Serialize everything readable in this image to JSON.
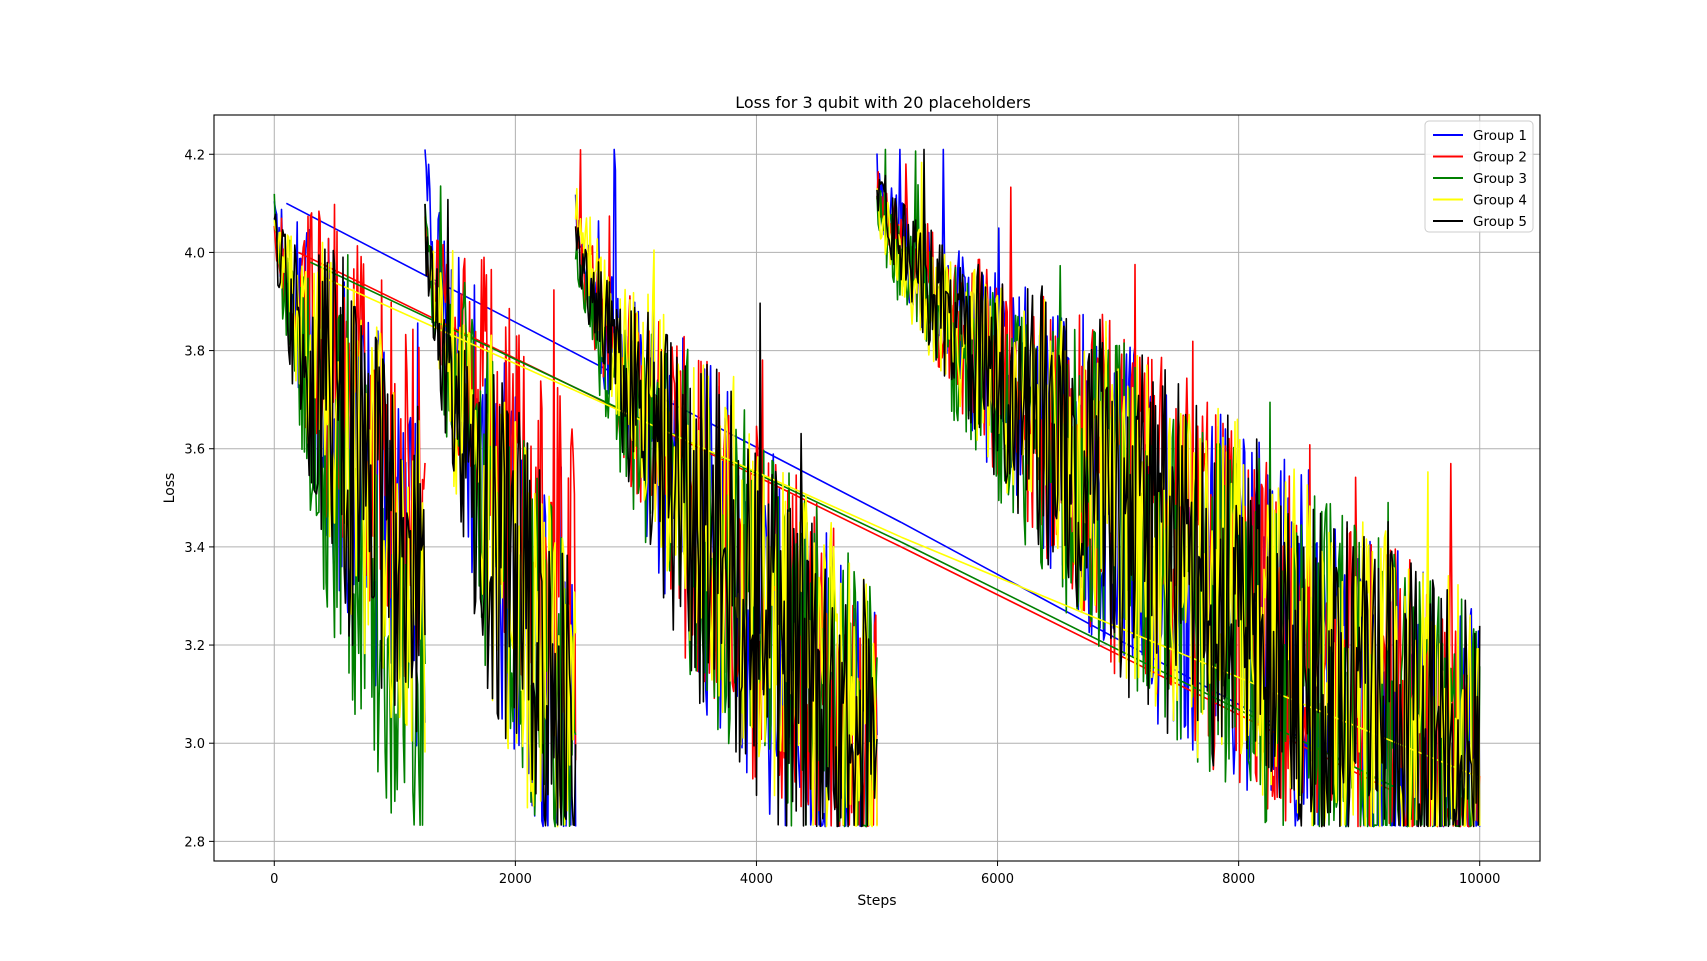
{
  "chart_data": {
    "type": "line",
    "title": "Loss for 3 qubit with 20 placeholders",
    "xlabel": "Steps",
    "ylabel": "Loss",
    "xlim": [
      -500,
      10500
    ],
    "ylim": [
      2.76,
      4.28
    ],
    "xticks": [
      0,
      2000,
      4000,
      6000,
      8000,
      10000
    ],
    "xtick_labels": [
      "0",
      "2000",
      "4000",
      "6000",
      "8000",
      "10000"
    ],
    "yticks": [
      2.8,
      3.0,
      3.2,
      3.4,
      3.6,
      3.8,
      4.0,
      4.2
    ],
    "ytick_labels": [
      "2.8",
      "3.0",
      "3.2",
      "3.4",
      "3.6",
      "3.8",
      "4.0",
      "4.2"
    ],
    "grid": true,
    "legend_position": "top-right",
    "floor": 2.83,
    "series": [
      {
        "name": "Group 1",
        "color": "#0000ff",
        "segments": [
          [
            0,
            1250,
            4.1,
            3.3
          ],
          [
            1250,
            2500,
            4.2,
            2.95
          ],
          [
            2500,
            5000,
            4.08,
            2.92
          ],
          [
            5000,
            10000,
            4.15,
            2.9
          ]
        ],
        "bridges": [
          [
            100,
            4.1,
            5200,
            3.45
          ],
          [
            5200,
            3.45,
            9200,
            2.92
          ]
        ]
      },
      {
        "name": "Group 2",
        "color": "#ff0000",
        "segments": [
          [
            0,
            1250,
            4.06,
            3.45
          ],
          [
            1250,
            2500,
            4.05,
            3.3
          ],
          [
            2500,
            5000,
            4.06,
            2.95
          ],
          [
            5000,
            10000,
            4.16,
            2.9
          ]
        ],
        "bridges": [
          [
            200,
            4.0,
            5200,
            3.4
          ],
          [
            5200,
            3.4,
            9300,
            2.9
          ]
        ]
      },
      {
        "name": "Group 3",
        "color": "#008000",
        "segments": [
          [
            0,
            1250,
            4.1,
            3.05
          ],
          [
            1250,
            2500,
            4.05,
            3.0
          ],
          [
            2500,
            5000,
            4.0,
            2.95
          ],
          [
            5000,
            10000,
            4.1,
            2.9
          ]
        ],
        "bridges": [
          [
            300,
            3.98,
            5200,
            3.41
          ],
          [
            5200,
            3.41,
            9300,
            2.91
          ]
        ]
      },
      {
        "name": "Group 4",
        "color": "#ffff00",
        "segments": [
          [
            0,
            1250,
            4.1,
            3.3
          ],
          [
            1250,
            2500,
            4.05,
            3.0
          ],
          [
            2500,
            5000,
            4.12,
            2.95
          ],
          [
            5000,
            10000,
            4.12,
            2.92
          ]
        ],
        "bridges": [
          [
            400,
            3.95,
            5200,
            3.42
          ],
          [
            5200,
            3.42,
            10000,
            2.93
          ]
        ]
      },
      {
        "name": "Group 5",
        "color": "#000000",
        "segments": [
          [
            0,
            1250,
            4.05,
            3.3
          ],
          [
            1250,
            2500,
            4.05,
            3.0
          ],
          [
            2500,
            5000,
            4.05,
            2.92
          ],
          [
            5000,
            10000,
            4.15,
            2.9
          ]
        ],
        "bridges": []
      }
    ]
  }
}
